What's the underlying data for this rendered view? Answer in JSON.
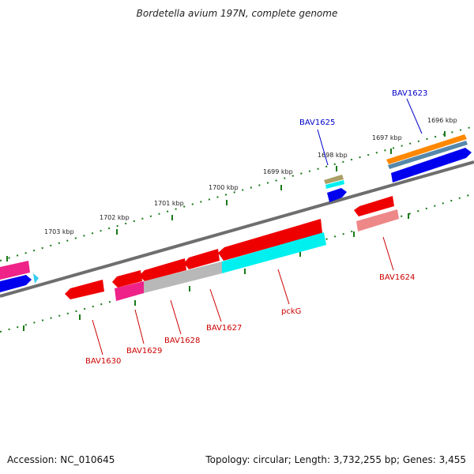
{
  "title": "Bordetella avium 197N, complete genome",
  "footer": {
    "accession": "Accession: NC_010645",
    "summary": "Topology: circular; Length: 3,732,255 bp; Genes: 3,455"
  },
  "ticks": [
    "1696 kbp",
    "1697 kbp",
    "1698 kbp",
    "1699 kbp",
    "1700 kbp",
    "1701 kbp",
    "1702 kbp",
    "1703 kbp"
  ],
  "gene_labels": {
    "bav1623": "BAV1623",
    "bav1624": "BAV1624",
    "bav1625": "BAV1625",
    "bav1627": "BAV1627",
    "bav1628": "BAV1628",
    "bav1629": "BAV1629",
    "bav1630": "BAV1630",
    "pckg": "pckG"
  },
  "colors": {
    "forward_cds": "#0000ee",
    "reverse_cds": "#ee0000",
    "blue_label": "#0000cc",
    "red_label": "#cc0000",
    "tick_green": "#1a7a1a",
    "backbone": "#6e6e6e",
    "cyan": "#00f0f0",
    "magenta": "#ee2288",
    "orange": "#ff8800",
    "pink": "#ee8888",
    "gray_band": "#b8b8b8"
  }
}
